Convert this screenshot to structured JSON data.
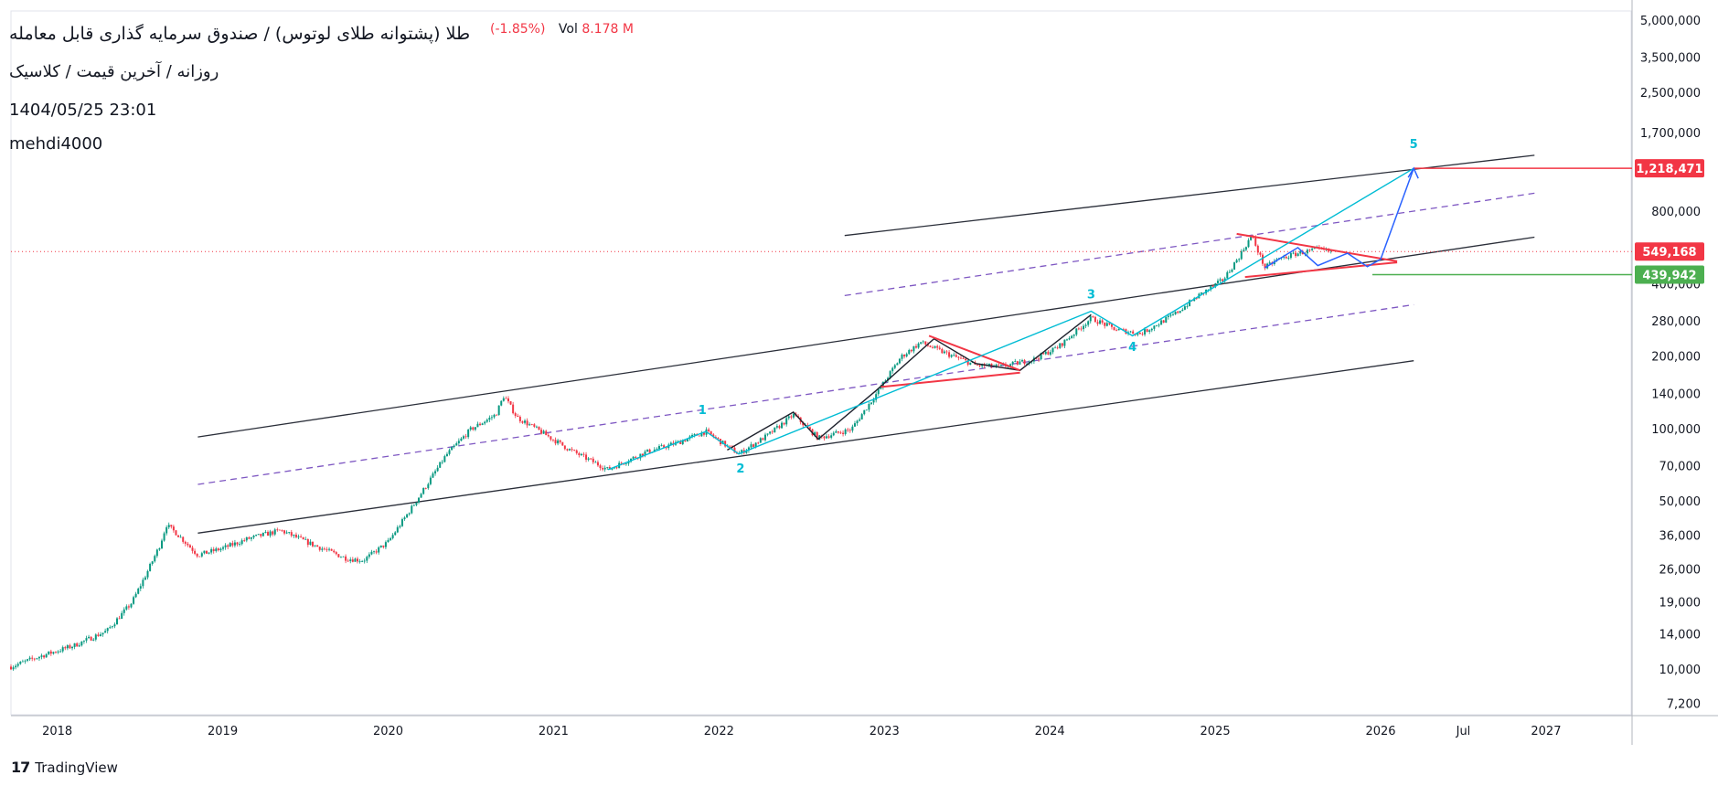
{
  "header": {
    "title": "طلا (پشتوانه طلای لوتوس) / صندوق سرمایه گذاری قابل معامله",
    "subtitle": "روزانه / آخرین قیمت / کلاسیک",
    "datetime": "1404/05/25 23:01",
    "user": "mehdi4000",
    "change_pct": "(-1.85%)",
    "vol_label": "Vol",
    "vol_value": "8.178 M"
  },
  "brand": {
    "name": "TradingView",
    "logo_icon": "tradingview-logo-icon"
  },
  "colors": {
    "candle_up": "#089981",
    "candle_down": "#f23645",
    "channel": "#2a2e39",
    "mid_dashed": "#7e57c2",
    "wave_cyan": "#00bcd4",
    "wave_black": "#1e222d",
    "projection_blue": "#2962ff",
    "triangle_red": "#f23645",
    "target_red": "#f23645",
    "support_green": "#4caf50"
  },
  "chart_data": {
    "type": "candlestick",
    "y_scale": "log",
    "ylim": [
      6500,
      5500000
    ],
    "xlim": [
      2017.72,
      2027.52
    ],
    "grid": false,
    "y_ticks": [
      5000000,
      3500000,
      2500000,
      1700000,
      1200000,
      800000,
      560000,
      400000,
      280000,
      200000,
      140000,
      100000,
      70000,
      50000,
      36000,
      26000,
      19000,
      14000,
      10000,
      7200
    ],
    "y_tick_labels": [
      "5,000,000",
      "3,500,000",
      "2,500,000",
      "1,700,000",
      "",
      "800,000",
      "",
      "400,000",
      "280,000",
      "200,000",
      "140,000",
      "100,000",
      "70,000",
      "50,000",
      "36,000",
      "26,000",
      "19,000",
      "14,000",
      "10,000",
      "7,200"
    ],
    "x_ticks": [
      {
        "value": 2018.0,
        "label": "2018"
      },
      {
        "value": 2019.0,
        "label": "2019"
      },
      {
        "value": 2020.0,
        "label": "2020"
      },
      {
        "value": 2021.0,
        "label": "2021"
      },
      {
        "value": 2022.0,
        "label": "2022"
      },
      {
        "value": 2023.0,
        "label": "2023"
      },
      {
        "value": 2024.0,
        "label": "2024"
      },
      {
        "value": 2025.0,
        "label": "2025"
      },
      {
        "value": 2026.0,
        "label": "2026"
      },
      {
        "value": 2026.5,
        "label": "Jul"
      },
      {
        "value": 2027.0,
        "label": "2027"
      }
    ],
    "price_path": [
      [
        2017.72,
        10300
      ],
      [
        2017.9,
        11400
      ],
      [
        2018.1,
        12600
      ],
      [
        2018.3,
        14500
      ],
      [
        2018.45,
        19000
      ],
      [
        2018.55,
        26000
      ],
      [
        2018.62,
        33000
      ],
      [
        2018.66,
        40000
      ],
      [
        2018.72,
        37000
      ],
      [
        2018.85,
        30000
      ],
      [
        2019.0,
        32000
      ],
      [
        2019.15,
        35000
      ],
      [
        2019.35,
        38000
      ],
      [
        2019.55,
        33000
      ],
      [
        2019.75,
        29000
      ],
      [
        2019.85,
        28500
      ],
      [
        2020.0,
        34000
      ],
      [
        2020.15,
        48000
      ],
      [
        2020.35,
        78000
      ],
      [
        2020.5,
        100000
      ],
      [
        2020.65,
        115000
      ],
      [
        2020.7,
        138000
      ],
      [
        2020.78,
        112000
      ],
      [
        2020.9,
        100000
      ],
      [
        2021.1,
        82000
      ],
      [
        2021.33,
        68000
      ],
      [
        2021.55,
        80000
      ],
      [
        2021.75,
        88000
      ],
      [
        2021.92,
        98000
      ],
      [
        2022.05,
        85000
      ],
      [
        2022.12,
        79000
      ],
      [
        2022.3,
        95000
      ],
      [
        2022.45,
        115000
      ],
      [
        2022.6,
        92000
      ],
      [
        2022.8,
        100000
      ],
      [
        2022.95,
        140000
      ],
      [
        2023.1,
        200000
      ],
      [
        2023.22,
        230000
      ],
      [
        2023.35,
        210000
      ],
      [
        2023.55,
        185000
      ],
      [
        2023.7,
        182000
      ],
      [
        2023.9,
        195000
      ],
      [
        2024.05,
        220000
      ],
      [
        2024.25,
        290000
      ],
      [
        2024.4,
        260000
      ],
      [
        2024.55,
        250000
      ],
      [
        2024.75,
        300000
      ],
      [
        2024.9,
        360000
      ],
      [
        2025.05,
        420000
      ],
      [
        2025.15,
        530000
      ],
      [
        2025.22,
        640000
      ],
      [
        2025.3,
        470000
      ],
      [
        2025.38,
        510000
      ],
      [
        2025.5,
        540000
      ],
      [
        2025.62,
        560000
      ],
      [
        2025.7,
        549168
      ]
    ],
    "last_price": 549168,
    "levels": [
      {
        "name": "target",
        "value": 1218471,
        "label": "1,218,471",
        "color": "#f23645"
      },
      {
        "name": "last",
        "value": 549168,
        "label": "549,168",
        "color": "#f23645"
      },
      {
        "name": "support",
        "value": 439942,
        "label": "439,942",
        "color": "#4caf50"
      }
    ],
    "channel_lines": [
      {
        "name": "upper-channel",
        "x": [
          2022.76,
          2026.93
        ],
        "y": [
          640000,
          1380000
        ],
        "style": "solid"
      },
      {
        "name": "middle-channel",
        "x": [
          2018.85,
          2026.93
        ],
        "y": [
          93000,
          630000
        ],
        "style": "solid"
      },
      {
        "name": "lower-channel",
        "x": [
          2018.85,
          2026.2
        ],
        "y": [
          37000,
          193000
        ],
        "style": "solid"
      },
      {
        "name": "upper-dashed",
        "x": [
          2022.76,
          2026.93
        ],
        "y": [
          360000,
          960000
        ],
        "style": "dashed"
      },
      {
        "name": "lower-dashed",
        "x": [
          2018.85,
          2026.2
        ],
        "y": [
          59000,
          330000
        ],
        "style": "dashed"
      }
    ],
    "wave_path": {
      "color": "cyan",
      "points": [
        [
          2021.33,
          68000
        ],
        [
          2021.92,
          98000
        ],
        [
          2022.12,
          79000
        ],
        [
          2024.25,
          310000
        ],
        [
          2024.5,
          245000
        ],
        [
          2026.2,
          1218471
        ]
      ]
    },
    "wave_labels": [
      {
        "label": "1",
        "x": 2021.9,
        "y": 116000
      },
      {
        "label": "2",
        "x": 2022.13,
        "y": 66000
      },
      {
        "label": "3",
        "x": 2024.25,
        "y": 350000
      },
      {
        "label": "4",
        "x": 2024.5,
        "y": 212000
      },
      {
        "label": "5",
        "x": 2026.2,
        "y": 1480000
      }
    ],
    "zigzags": [
      {
        "name": "zigzag-2022",
        "points": [
          [
            2022.05,
            82000
          ],
          [
            2022.45,
            118000
          ],
          [
            2022.6,
            91000
          ],
          [
            2022.95,
            145000
          ],
          [
            2023.3,
            238000
          ],
          [
            2023.55,
            188000
          ],
          [
            2023.82,
            176000
          ],
          [
            2024.25,
            300000
          ]
        ]
      }
    ],
    "triangles": [
      {
        "name": "triangle-2023",
        "upper": [
          [
            2023.27,
            245000
          ],
          [
            2023.82,
            176000
          ]
        ],
        "lower": [
          [
            2022.98,
            150000
          ],
          [
            2023.82,
            172000
          ]
        ]
      },
      {
        "name": "triangle-2025",
        "upper": [
          [
            2025.13,
            650000
          ],
          [
            2026.1,
            500000
          ]
        ],
        "lower": [
          [
            2025.18,
            430000
          ],
          [
            2026.1,
            495000
          ]
        ]
      }
    ],
    "projection": {
      "points": [
        [
          2025.3,
          470000
        ],
        [
          2025.5,
          570000
        ],
        [
          2025.62,
          480000
        ],
        [
          2025.8,
          540000
        ],
        [
          2025.92,
          475000
        ],
        [
          2026.0,
          510000
        ],
        [
          2026.2,
          1218471
        ]
      ]
    }
  }
}
